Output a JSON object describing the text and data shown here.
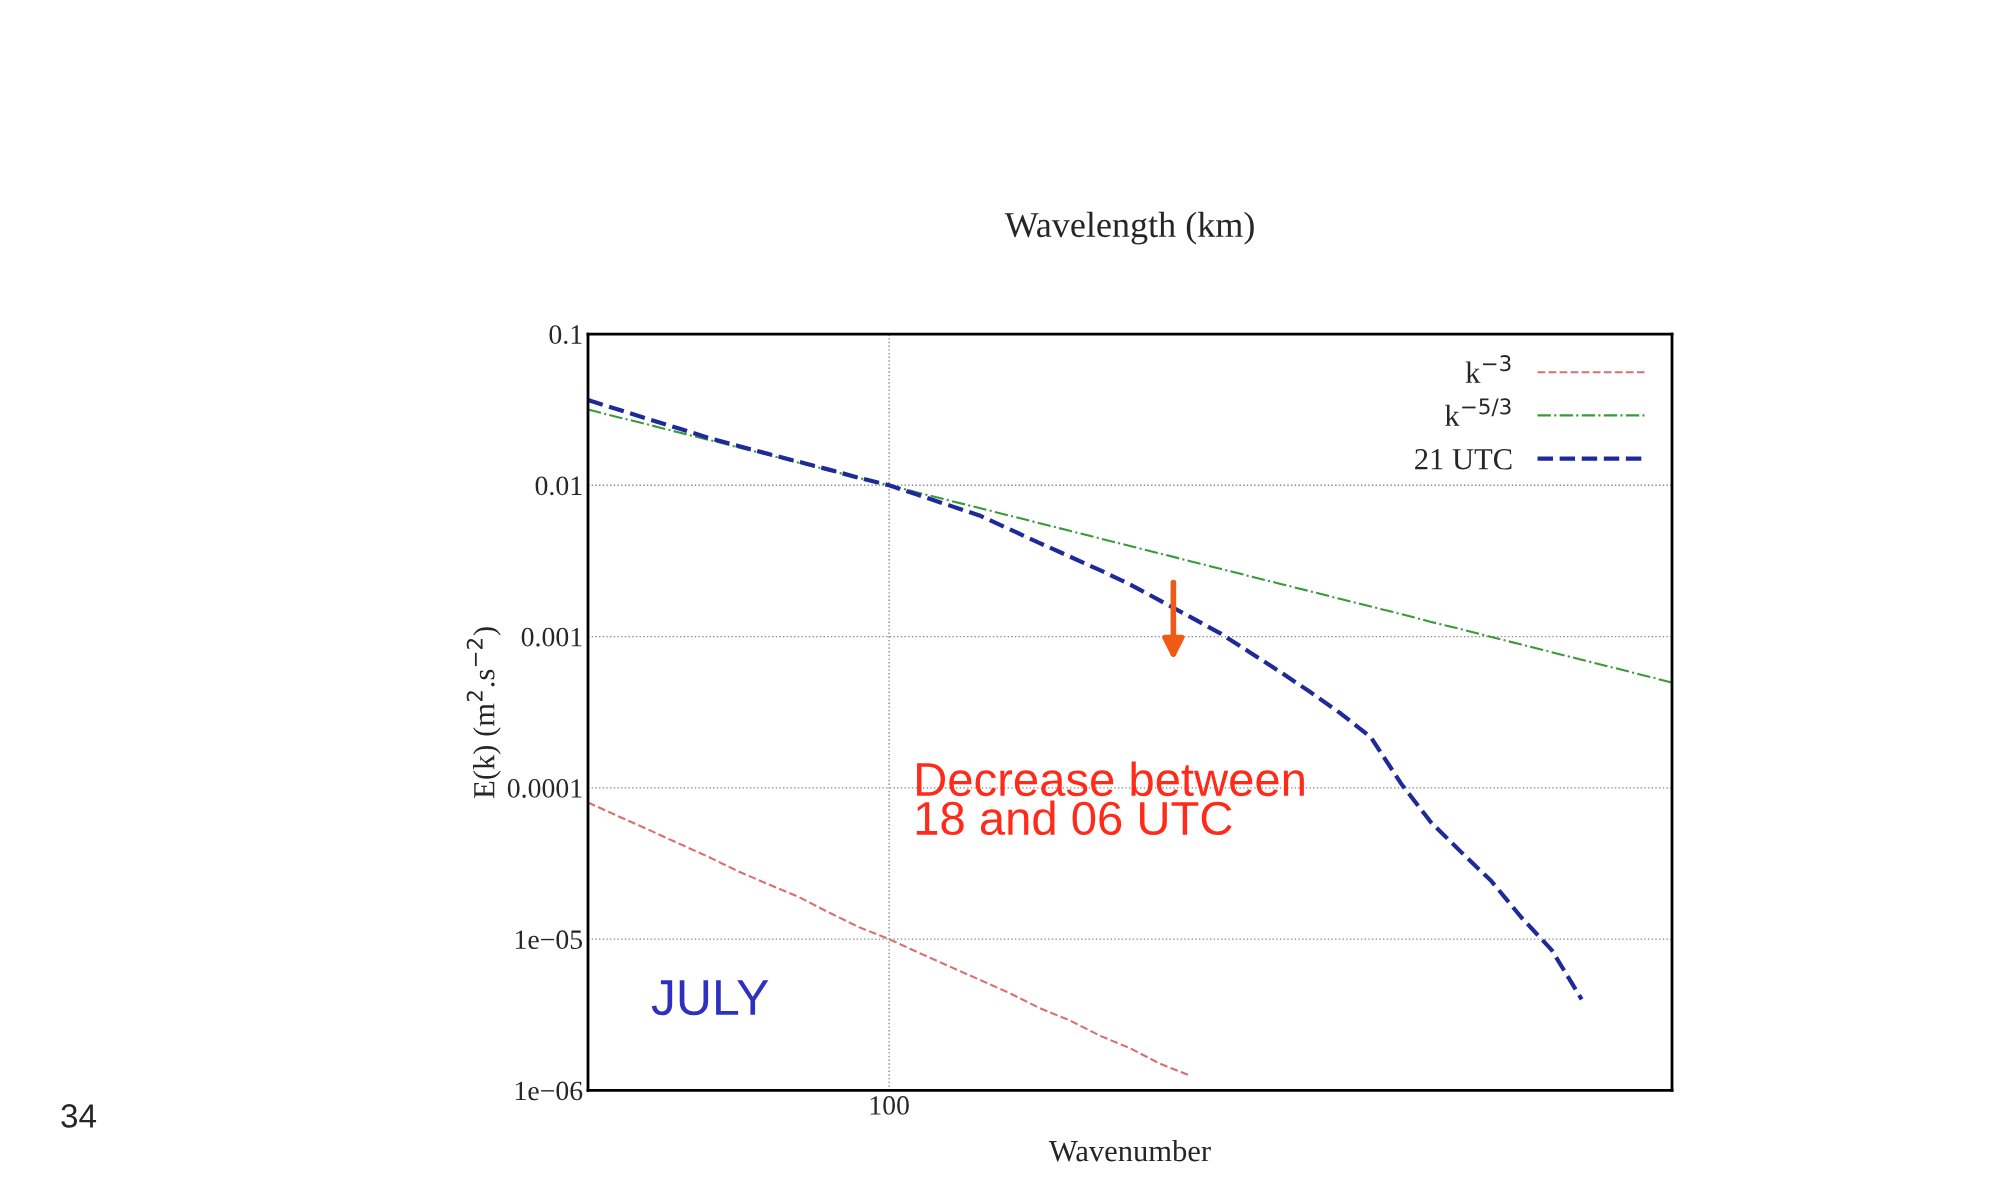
{
  "chart_data": {
    "type": "line",
    "title": "Wavelength (km)",
    "xlabel": "Wavenumber",
    "ylabel": "E(k) (m$^{2}$.s$^{−2}$)",
    "log": "y",
    "ylim": [
      1e-06,
      0.1
    ],
    "categories": [
      null,
      null,
      null,
      null,
      null,
      null,
      null,
      null,
      null,
      null,
      "100",
      null,
      null,
      null,
      null,
      null,
      null,
      null,
      null,
      null,
      null,
      null,
      null,
      null,
      null,
      null,
      null,
      null,
      null,
      null,
      null,
      null,
      null,
      null,
      null,
      null,
      null
    ],
    "yticks": [
      {
        "value": 1e-06,
        "label": "1e−06"
      },
      {
        "value": 1e-05,
        "label": "1e−05"
      },
      {
        "value": 0.0001,
        "label": "0.0001"
      },
      {
        "value": 0.001,
        "label": "0.001"
      },
      {
        "value": 0.01,
        "label": "0.01"
      },
      {
        "value": 0.1,
        "label": "0.1"
      }
    ],
    "grid": true,
    "legend": "top right",
    "marker": "none",
    "series": [
      {
        "name": "k$^{−3}$",
        "color": "#d9706e",
        "line_style": "dashed",
        "values": [
          8e-05,
          6.5e-05,
          5.3e-05,
          4.3e-05,
          3.5e-05,
          2.8e-05,
          2.3e-05,
          1.9e-05,
          1.5e-05,
          1.2e-05,
          1e-05,
          8.1e-06,
          6.6e-06,
          5.4e-06,
          4.4e-06,
          3.5e-06,
          2.9e-06,
          2.3e-06,
          1.9e-06,
          1.5e-06,
          1.25e-06,
          null,
          null,
          null,
          null,
          null,
          null,
          null,
          null,
          null,
          null,
          null,
          null,
          null,
          null,
          null,
          null
        ]
      },
      {
        "name": "k$^{−5/3}$",
        "color": "#3a9a3a",
        "line_style": "dashdot",
        "values": [
          0.0317,
          0.0282,
          0.0252,
          0.0224,
          0.02,
          0.0178,
          0.0159,
          0.0141,
          0.0126,
          0.0112,
          0.01,
          0.00891,
          0.00794,
          0.00708,
          0.0063,
          0.00562,
          0.005,
          0.00446,
          0.00397,
          0.00354,
          0.00315,
          0.00281,
          0.0025,
          0.00223,
          0.00199,
          0.00177,
          0.00158,
          0.00141,
          0.00125,
          0.00112,
          0.000994,
          0.000886,
          0.000789,
          0.000703,
          0.000627,
          0.000558,
          0.000497
        ]
      },
      {
        "name": "21 UTC",
        "color": "#1f2a9a",
        "line_style": "dashed",
        "values": [
          0.0366,
          0.0317,
          0.0274,
          0.0238,
          0.0206,
          0.0182,
          0.0161,
          0.0143,
          0.0127,
          0.0112,
          0.01,
          0.00859,
          0.00737,
          0.00632,
          0.00513,
          0.00415,
          0.00338,
          0.00275,
          0.00221,
          0.00173,
          0.00135,
          0.00105,
          0.000783,
          0.000582,
          0.000428,
          0.00031,
          0.000216,
          0.000107,
          5.9e-05,
          3.76e-05,
          2.42e-05,
          1.39e-05,
          8.5e-06,
          4e-06,
          null,
          null,
          null
        ]
      }
    ],
    "annotations": [
      "Decrease between\n18 and 06 UTC",
      "JULY",
      "34"
    ]
  }
}
